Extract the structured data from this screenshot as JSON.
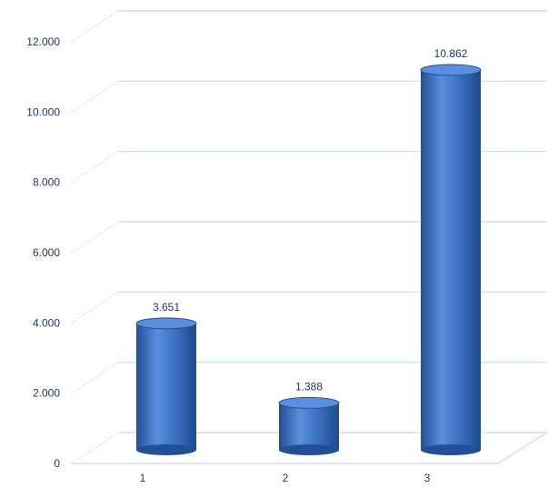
{
  "chart_data": {
    "type": "bar",
    "style": "3d-cylinder",
    "categories": [
      "1",
      "2",
      "3"
    ],
    "values": [
      3651,
      1388,
      10862
    ],
    "data_labels": [
      "3.651",
      "1.388",
      "10.862"
    ],
    "y_ticks": [
      0,
      2000,
      4000,
      6000,
      8000,
      10000,
      12000
    ],
    "y_tick_labels": [
      "0",
      "2.000",
      "4.000",
      "6.000",
      "8.000",
      "10.000",
      "12.000"
    ],
    "ylim": [
      0,
      12000
    ],
    "title": "",
    "xlabel": "",
    "ylabel": "",
    "grid": true,
    "legend": "none",
    "colors": {
      "bar": "#3f74c6",
      "bar_dark": "#234f94",
      "bar_light": "#5b8ede",
      "grid": "#c9d9ef",
      "text": "#1f3864"
    }
  }
}
